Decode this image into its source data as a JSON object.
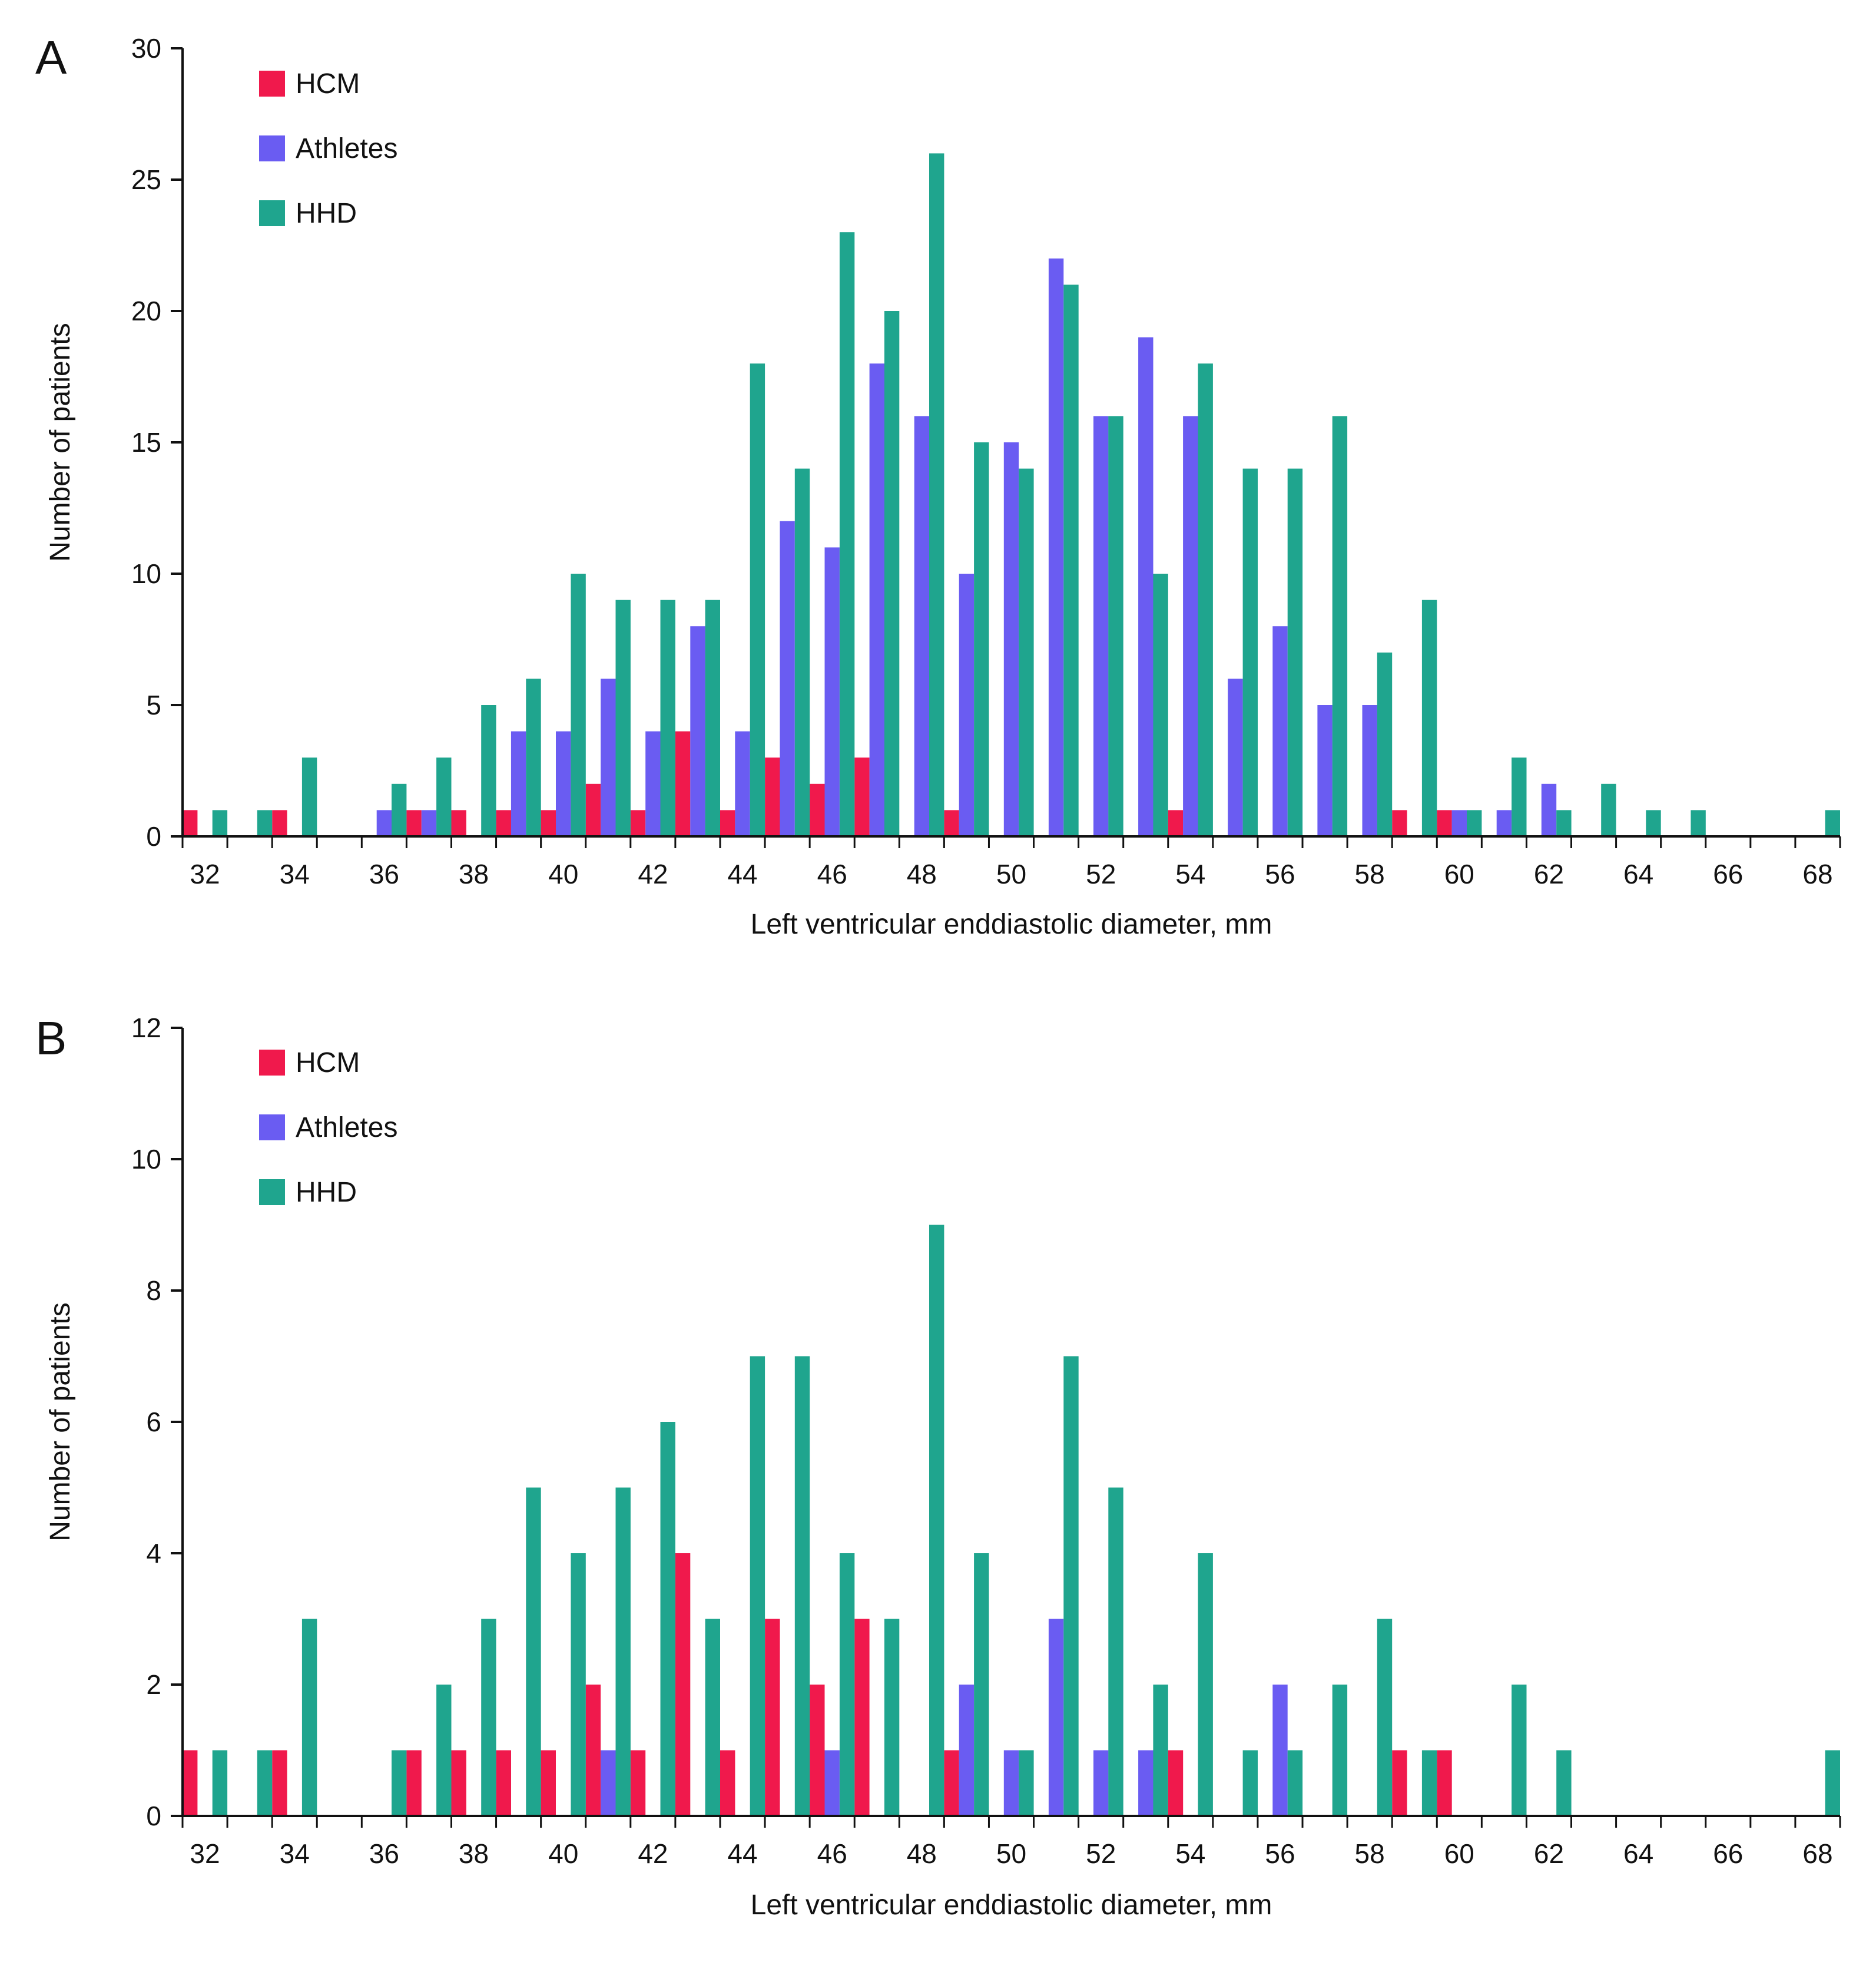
{
  "chart_data": [
    {
      "type": "bar",
      "panel_label": "A",
      "xlabel": "Left ventricular enddiastolic diameter, mm",
      "ylabel": "Number of patients",
      "ylim": [
        0,
        30
      ],
      "yticks": [
        "0",
        "5",
        "10",
        "15",
        "20",
        "25",
        "30"
      ],
      "x": [
        32,
        33,
        34,
        35,
        36,
        37,
        38,
        39,
        40,
        41,
        42,
        43,
        44,
        45,
        46,
        47,
        48,
        49,
        50,
        51,
        52,
        53,
        54,
        55,
        56,
        57,
        58,
        59,
        60,
        61,
        62,
        63,
        64,
        65,
        66,
        67,
        68
      ],
      "xticks": [
        "32",
        "34",
        "36",
        "38",
        "40",
        "42",
        "44",
        "46",
        "48",
        "50",
        "52",
        "54",
        "56",
        "58",
        "60",
        "62",
        "64",
        "66",
        "68"
      ],
      "legend_position": "top-left",
      "series": [
        {
          "name": "HCM",
          "color": "#f0194c",
          "values": [
            1,
            0,
            1,
            0,
            0,
            1,
            1,
            1,
            1,
            2,
            1,
            4,
            1,
            3,
            2,
            3,
            0,
            1,
            0,
            0,
            0,
            0,
            1,
            0,
            0,
            0,
            0,
            1,
            1,
            0,
            0,
            0,
            0,
            0,
            0,
            0,
            0
          ]
        },
        {
          "name": "Athletes",
          "color": "#6a5cf2",
          "values": [
            0,
            0,
            0,
            0,
            1,
            1,
            0,
            4,
            4,
            6,
            4,
            8,
            4,
            12,
            11,
            18,
            16,
            10,
            15,
            22,
            16,
            19,
            16,
            6,
            8,
            5,
            5,
            0,
            1,
            1,
            2,
            0,
            0,
            0,
            0,
            0,
            0
          ]
        },
        {
          "name": "HHD",
          "color": "#1fa58e",
          "values": [
            1,
            1,
            3,
            0,
            2,
            3,
            5,
            6,
            10,
            9,
            9,
            9,
            18,
            14,
            23,
            20,
            26,
            15,
            14,
            21,
            16,
            10,
            18,
            14,
            14,
            16,
            7,
            9,
            1,
            3,
            1,
            2,
            1,
            1,
            0,
            0,
            1
          ]
        }
      ]
    },
    {
      "type": "bar",
      "panel_label": "B",
      "xlabel": "Left ventricular enddiastolic diameter, mm",
      "ylabel": "Number of patients",
      "ylim": [
        0,
        12
      ],
      "yticks": [
        "0",
        "2",
        "4",
        "6",
        "8",
        "10",
        "12"
      ],
      "x": [
        32,
        33,
        34,
        35,
        36,
        37,
        38,
        39,
        40,
        41,
        42,
        43,
        44,
        45,
        46,
        47,
        48,
        49,
        50,
        51,
        52,
        53,
        54,
        55,
        56,
        57,
        58,
        59,
        60,
        61,
        62,
        63,
        64,
        65,
        66,
        67,
        68
      ],
      "xticks": [
        "32",
        "34",
        "36",
        "38",
        "40",
        "42",
        "44",
        "46",
        "48",
        "50",
        "52",
        "54",
        "56",
        "58",
        "60",
        "62",
        "64",
        "66",
        "68"
      ],
      "legend_position": "top-left",
      "series": [
        {
          "name": "HCM",
          "color": "#f0194c",
          "values": [
            1,
            0,
            1,
            0,
            0,
            1,
            1,
            1,
            1,
            2,
            1,
            4,
            1,
            3,
            2,
            3,
            0,
            1,
            0,
            0,
            0,
            0,
            1,
            0,
            0,
            0,
            0,
            1,
            1,
            0,
            0,
            0,
            0,
            0,
            0,
            0,
            0
          ]
        },
        {
          "name": "Athletes",
          "color": "#6a5cf2",
          "values": [
            0,
            0,
            0,
            0,
            0,
            0,
            0,
            0,
            0,
            1,
            0,
            0,
            0,
            0,
            1,
            0,
            0,
            2,
            1,
            3,
            1,
            1,
            0,
            0,
            2,
            0,
            0,
            0,
            0,
            0,
            0,
            0,
            0,
            0,
            0,
            0,
            0
          ]
        },
        {
          "name": "HHD",
          "color": "#1fa58e",
          "values": [
            1,
            1,
            3,
            0,
            1,
            2,
            3,
            5,
            4,
            5,
            6,
            3,
            7,
            7,
            4,
            3,
            9,
            4,
            1,
            7,
            5,
            2,
            4,
            1,
            1,
            2,
            3,
            1,
            0,
            2,
            1,
            0,
            0,
            0,
            0,
            0,
            1
          ]
        }
      ]
    }
  ]
}
